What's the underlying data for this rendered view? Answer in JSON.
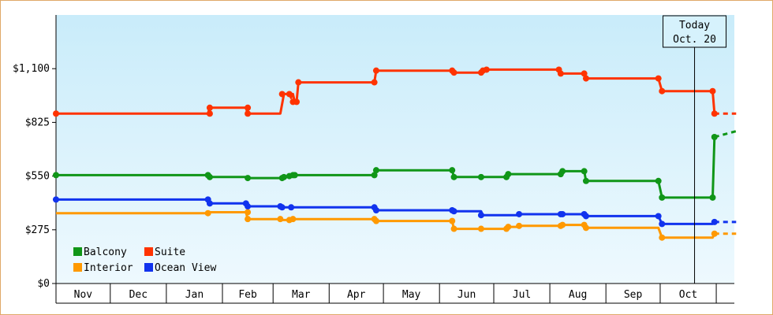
{
  "chart_data": {
    "type": "line",
    "y_ticks": [
      "$0",
      "$275",
      "$550",
      "$825",
      "$1,100"
    ],
    "ylim": [
      0,
      1375
    ],
    "x_months": [
      "Nov",
      "Dec",
      "Jan",
      "Feb",
      "Mar",
      "Apr",
      "May",
      "Jun",
      "Jul",
      "Aug",
      "Sep",
      "Oct"
    ],
    "xlim_days": [
      0,
      375
    ],
    "today": {
      "line1": "Today",
      "line2": "Oct. 20",
      "day": 353
    },
    "legend": {
      "position": "bottom-left"
    },
    "series": [
      {
        "name": "Suite",
        "color": "#ff3300",
        "steps": [
          [
            0,
            870
          ],
          [
            84,
            870
          ],
          [
            85,
            900
          ],
          [
            105,
            900
          ],
          [
            106,
            870
          ],
          [
            124,
            870
          ],
          [
            126,
            970
          ],
          [
            129,
            970
          ],
          [
            130,
            950
          ],
          [
            130,
            970
          ],
          [
            131,
            970
          ],
          [
            132,
            930
          ],
          [
            133,
            930
          ],
          [
            134,
            1030
          ],
          [
            176,
            1030
          ],
          [
            177,
            1090
          ],
          [
            219,
            1090
          ],
          [
            220,
            1080
          ],
          [
            235,
            1080
          ],
          [
            236,
            1090
          ],
          [
            238,
            1095
          ],
          [
            278,
            1095
          ],
          [
            279,
            1075
          ],
          [
            292,
            1075
          ],
          [
            293,
            1050
          ],
          [
            333,
            1050
          ],
          [
            335,
            985
          ],
          [
            363,
            985
          ],
          [
            364,
            870
          ]
        ],
        "projection": [
          [
            364,
            870
          ],
          [
            376,
            870
          ]
        ]
      },
      {
        "name": "Balcony",
        "color": "#109618",
        "steps": [
          [
            0,
            555
          ],
          [
            84,
            555
          ],
          [
            85,
            545
          ],
          [
            105,
            545
          ],
          [
            106,
            540
          ],
          [
            124,
            540
          ],
          [
            125,
            545
          ],
          [
            128,
            545
          ],
          [
            129,
            550
          ],
          [
            131,
            550
          ],
          [
            132,
            555
          ],
          [
            176,
            555
          ],
          [
            177,
            580
          ],
          [
            219,
            580
          ],
          [
            220,
            545
          ],
          [
            235,
            545
          ],
          [
            236,
            545
          ],
          [
            249,
            545
          ],
          [
            250,
            560
          ],
          [
            279,
            560
          ],
          [
            280,
            575
          ],
          [
            292,
            575
          ],
          [
            293,
            525
          ],
          [
            333,
            525
          ],
          [
            335,
            440
          ],
          [
            363,
            440
          ],
          [
            364,
            750
          ]
        ],
        "projection": [
          [
            364,
            750
          ],
          [
            376,
            780
          ]
        ]
      },
      {
        "name": "Ocean View",
        "color": "#1133ee",
        "steps": [
          [
            0,
            430
          ],
          [
            84,
            430
          ],
          [
            85,
            410
          ],
          [
            105,
            410
          ],
          [
            106,
            395
          ],
          [
            124,
            395
          ],
          [
            125,
            390
          ],
          [
            129,
            390
          ],
          [
            130,
            390
          ],
          [
            176,
            390
          ],
          [
            177,
            375
          ],
          [
            219,
            375
          ],
          [
            220,
            370
          ],
          [
            235,
            370
          ],
          [
            236,
            350
          ],
          [
            255,
            350
          ],
          [
            256,
            355
          ],
          [
            279,
            355
          ],
          [
            280,
            355
          ],
          [
            292,
            355
          ],
          [
            293,
            345
          ],
          [
            333,
            345
          ],
          [
            335,
            305
          ],
          [
            363,
            305
          ],
          [
            364,
            315
          ]
        ],
        "projection": [
          [
            364,
            315
          ],
          [
            376,
            315
          ]
        ]
      },
      {
        "name": "Interior",
        "color": "#ff9900",
        "steps": [
          [
            0,
            360
          ],
          [
            84,
            360
          ],
          [
            85,
            365
          ],
          [
            105,
            365
          ],
          [
            106,
            330
          ],
          [
            124,
            330
          ],
          [
            125,
            325
          ],
          [
            129,
            325
          ],
          [
            130,
            330
          ],
          [
            176,
            330
          ],
          [
            177,
            320
          ],
          [
            219,
            320
          ],
          [
            220,
            280
          ],
          [
            235,
            280
          ],
          [
            236,
            280
          ],
          [
            249,
            280
          ],
          [
            250,
            290
          ],
          [
            255,
            290
          ],
          [
            256,
            295
          ],
          [
            279,
            295
          ],
          [
            280,
            300
          ],
          [
            292,
            300
          ],
          [
            293,
            285
          ],
          [
            333,
            285
          ],
          [
            335,
            235
          ],
          [
            363,
            235
          ],
          [
            364,
            255
          ]
        ],
        "projection": [
          [
            364,
            255
          ],
          [
            376,
            255
          ]
        ]
      }
    ],
    "markers": {
      "Suite": [
        [
          0,
          870
        ],
        [
          85,
          870
        ],
        [
          85,
          900
        ],
        [
          106,
          900
        ],
        [
          106,
          870
        ],
        [
          125,
          970
        ],
        [
          129,
          970
        ],
        [
          131,
          930
        ],
        [
          133,
          930
        ],
        [
          134,
          1030
        ],
        [
          176,
          1030
        ],
        [
          177,
          1090
        ],
        [
          219,
          1090
        ],
        [
          220,
          1080
        ],
        [
          235,
          1080
        ],
        [
          236,
          1090
        ],
        [
          238,
          1095
        ],
        [
          278,
          1095
        ],
        [
          279,
          1075
        ],
        [
          292,
          1075
        ],
        [
          293,
          1050
        ],
        [
          333,
          1050
        ],
        [
          335,
          985
        ],
        [
          363,
          985
        ],
        [
          364,
          870
        ]
      ],
      "Balcony": [
        [
          0,
          555
        ],
        [
          84,
          555
        ],
        [
          85,
          545
        ],
        [
          106,
          540
        ],
        [
          125,
          540
        ],
        [
          126,
          545
        ],
        [
          129,
          550
        ],
        [
          131,
          555
        ],
        [
          132,
          555
        ],
        [
          176,
          555
        ],
        [
          177,
          580
        ],
        [
          219,
          580
        ],
        [
          220,
          545
        ],
        [
          235,
          545
        ],
        [
          249,
          545
        ],
        [
          250,
          560
        ],
        [
          279,
          560
        ],
        [
          280,
          575
        ],
        [
          292,
          575
        ],
        [
          293,
          525
        ],
        [
          333,
          525
        ],
        [
          335,
          440
        ],
        [
          363,
          440
        ],
        [
          364,
          750
        ]
      ],
      "Ocean View": [
        [
          0,
          430
        ],
        [
          84,
          430
        ],
        [
          85,
          410
        ],
        [
          105,
          410
        ],
        [
          106,
          395
        ],
        [
          124,
          395
        ],
        [
          125,
          390
        ],
        [
          130,
          390
        ],
        [
          176,
          390
        ],
        [
          177,
          375
        ],
        [
          219,
          375
        ],
        [
          220,
          370
        ],
        [
          235,
          350
        ],
        [
          256,
          355
        ],
        [
          279,
          355
        ],
        [
          280,
          355
        ],
        [
          292,
          355
        ],
        [
          293,
          345
        ],
        [
          333,
          345
        ],
        [
          335,
          305
        ],
        [
          364,
          315
        ]
      ],
      "Interior": [
        [
          84,
          360
        ],
        [
          106,
          365
        ],
        [
          106,
          330
        ],
        [
          124,
          330
        ],
        [
          129,
          325
        ],
        [
          131,
          330
        ],
        [
          176,
          330
        ],
        [
          177,
          320
        ],
        [
          219,
          320
        ],
        [
          220,
          280
        ],
        [
          235,
          280
        ],
        [
          249,
          280
        ],
        [
          250,
          290
        ],
        [
          256,
          295
        ],
        [
          279,
          295
        ],
        [
          280,
          300
        ],
        [
          292,
          300
        ],
        [
          293,
          285
        ],
        [
          335,
          235
        ],
        [
          364,
          255
        ]
      ]
    }
  }
}
